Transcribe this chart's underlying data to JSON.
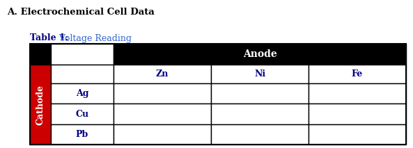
{
  "title": "A. Electrochemical Cell Data",
  "table_title_bold": "Table 1:",
  "table_title_normal": " Voltage Reading",
  "anode_label": "Anode",
  "cathode_label": "Cathode",
  "anode_cols": [
    "Zn",
    "Ni",
    "Fe"
  ],
  "cathode_rows": [
    "Ag",
    "Cu",
    "Pb"
  ],
  "header_bg": "#000000",
  "header_fg": "#ffffff",
  "cathode_bg": "#cc0000",
  "cathode_fg": "#ffffff",
  "cell_bg": "#ffffff",
  "title_color": "#000000",
  "table_title_bold_color": "#000080",
  "table_title_normal_color": "#3366cc",
  "cell_text_color": "#000080",
  "fig_bg": "#ffffff"
}
